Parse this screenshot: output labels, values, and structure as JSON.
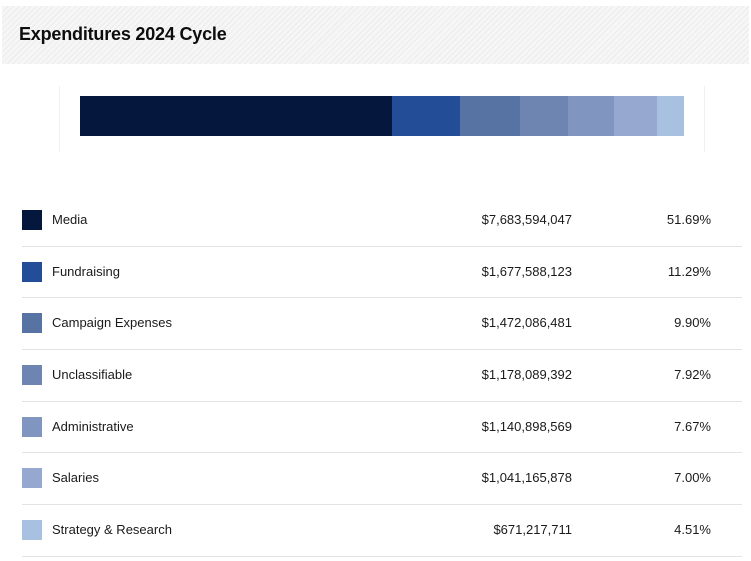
{
  "header": {
    "title": "Expenditures 2024 Cycle"
  },
  "chart_data": {
    "type": "bar",
    "orientation": "horizontal-stacked-100",
    "title": "Expenditures 2024 Cycle",
    "categories": [
      "Media",
      "Fundraising",
      "Campaign Expenses",
      "Unclassifiable",
      "Administrative",
      "Salaries",
      "Strategy & Research"
    ],
    "values": [
      7683594047,
      1677588123,
      1472086481,
      1178089392,
      1140898569,
      1041165878,
      671217711
    ],
    "amount_labels": [
      "$7,683,594,047",
      "$1,677,588,123",
      "$1,472,086,481",
      "$1,178,089,392",
      "$1,140,898,569",
      "$1,041,165,878",
      "$671,217,711"
    ],
    "percent_values": [
      51.69,
      11.29,
      9.9,
      7.92,
      7.67,
      7.0,
      4.51
    ],
    "percent_labels": [
      "51.69%",
      "11.29%",
      "9.90%",
      "7.92%",
      "7.67%",
      "7.00%",
      "4.51%"
    ],
    "colors": [
      "#06173d",
      "#234d96",
      "#5673a3",
      "#6e84b1",
      "#8195c1",
      "#96a8cf",
      "#a9c1e0"
    ],
    "legend": "below"
  }
}
